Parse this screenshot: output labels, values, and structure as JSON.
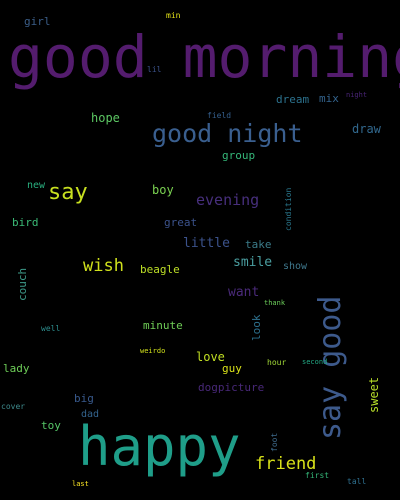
{
  "words": [
    {
      "text": "good morning",
      "color": "#541c6e"
    },
    {
      "text": "happy",
      "color": "#1f9e89"
    },
    {
      "text": "say good",
      "color": "#3d5a8c"
    },
    {
      "text": "good night",
      "color": "#3a5f8f"
    },
    {
      "text": "say",
      "color": "#c8e020"
    },
    {
      "text": "friend",
      "color": "#d8e219"
    },
    {
      "text": "wish",
      "color": "#d0e11c"
    },
    {
      "text": "evening",
      "color": "#472f7d"
    },
    {
      "text": "little",
      "color": "#3b528b"
    },
    {
      "text": "smile",
      "color": "#4a9ea0"
    },
    {
      "text": "want",
      "color": "#4a2a7a"
    },
    {
      "text": "hope",
      "color": "#5cc863"
    },
    {
      "text": "boy",
      "color": "#7ad151"
    },
    {
      "text": "love",
      "color": "#c2df23"
    },
    {
      "text": "draw",
      "color": "#31688e"
    },
    {
      "text": "sweet",
      "color": "#b8de29"
    },
    {
      "text": "beagle",
      "color": "#bddf26"
    },
    {
      "text": "dream",
      "color": "#2c728e"
    },
    {
      "text": "mix",
      "color": "#33638d"
    },
    {
      "text": "girl",
      "color": "#3b5e89"
    },
    {
      "text": "group",
      "color": "#35b779"
    },
    {
      "text": "new",
      "color": "#29af7f"
    },
    {
      "text": "bird",
      "color": "#3aba76"
    },
    {
      "text": "great",
      "color": "#3b528b"
    },
    {
      "text": "take",
      "color": "#3b7c8a"
    },
    {
      "text": "show",
      "color": "#3f788d"
    },
    {
      "text": "couch",
      "color": "#3e9b8a"
    },
    {
      "text": "look",
      "color": "#2d718e"
    },
    {
      "text": "minute",
      "color": "#70cf57"
    },
    {
      "text": "guy",
      "color": "#dae319"
    },
    {
      "text": "lady",
      "color": "#6ece58"
    },
    {
      "text": "big",
      "color": "#38598c"
    },
    {
      "text": "dogpicture",
      "color": "#482878"
    },
    {
      "text": "dad",
      "color": "#33638d"
    },
    {
      "text": "toy",
      "color": "#55c667"
    },
    {
      "text": "min",
      "color": "#e5e419"
    },
    {
      "text": "lil",
      "color": "#3b528b"
    },
    {
      "text": "field",
      "color": "#355f8d"
    },
    {
      "text": "night",
      "color": "#482475"
    },
    {
      "text": "condition",
      "color": "#2a788e"
    },
    {
      "text": "thank",
      "color": "#6ccd5a"
    },
    {
      "text": "well",
      "color": "#2d8c8c"
    },
    {
      "text": "weirdo",
      "color": "#d2e21b"
    },
    {
      "text": "hour",
      "color": "#a2da37"
    },
    {
      "text": "second",
      "color": "#22a884"
    },
    {
      "text": "cover",
      "color": "#3e8a8c"
    },
    {
      "text": "foot",
      "color": "#3e6a8c"
    },
    {
      "text": "first",
      "color": "#35b779"
    },
    {
      "text": "last",
      "color": "#fde725"
    },
    {
      "text": "tall",
      "color": "#2e6f8e"
    }
  ]
}
